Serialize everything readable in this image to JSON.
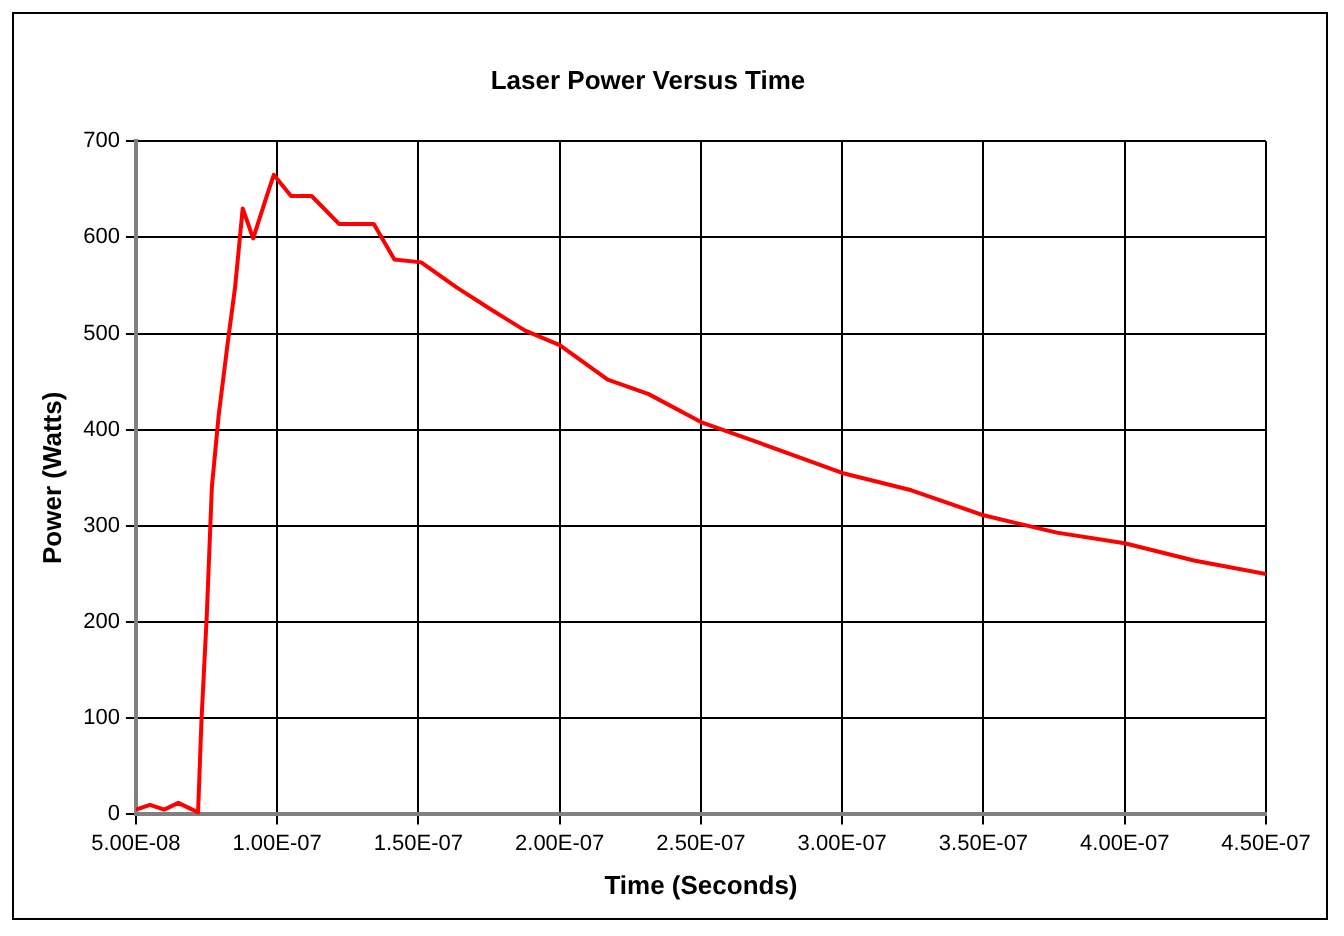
{
  "chart_data": {
    "type": "line",
    "title": "Laser Power Versus Time",
    "xlabel": "Time (Seconds)",
    "ylabel": "Power (Watts)",
    "series": [
      {
        "color": "#ff0000",
        "x": [
          5e-08,
          5.5e-08,
          6e-08,
          6.5e-08,
          7e-08,
          7.2e-08,
          7.32e-08,
          7.51e-08,
          7.69e-08,
          7.93e-08,
          8.24e-08,
          8.51e-08,
          8.78e-08,
          9.15e-08,
          9.63e-08,
          9.88e-08,
          1.049e-07,
          1.122e-07,
          1.219e-07,
          1.342e-07,
          1.415e-07,
          1.51e-07,
          1.635e-07,
          1.757e-07,
          1.878e-07,
          2e-07,
          2.17e-07,
          2.315e-07,
          2.5e-07,
          2.71e-07,
          3e-07,
          3.245e-07,
          3.5e-07,
          3.76e-07,
          4e-07,
          4.245e-07,
          4.5e-07
        ],
        "values": [
          5,
          10,
          5,
          12,
          5,
          2,
          97,
          208,
          341,
          415,
          488,
          548,
          630,
          599,
          643,
          665,
          643,
          643,
          614,
          614,
          577,
          574,
          548,
          525,
          503,
          488,
          452,
          437,
          408,
          386,
          355,
          337,
          311,
          293,
          282,
          264,
          250
        ]
      }
    ],
    "xlim": [
      5e-08,
      4.5e-07
    ],
    "xticks": [
      {
        "value": 5e-08,
        "label": "5.00E-08"
      },
      {
        "value": 1e-07,
        "label": "1.00E-07"
      },
      {
        "value": 1.5e-07,
        "label": "1.50E-07"
      },
      {
        "value": 2e-07,
        "label": "2.00E-07"
      },
      {
        "value": 2.5e-07,
        "label": "2.50E-07"
      },
      {
        "value": 3e-07,
        "label": "3.00E-07"
      },
      {
        "value": 3.5e-07,
        "label": "3.50E-07"
      },
      {
        "value": 4e-07,
        "label": "4.00E-07"
      },
      {
        "value": 4.5e-07,
        "label": "4.50E-07"
      }
    ],
    "ylim": [
      0,
      700
    ],
    "yticks": [
      0,
      100,
      200,
      300,
      400,
      500,
      600,
      700
    ],
    "grid": true,
    "legend": false,
    "marker": "none",
    "line_style": "solid"
  }
}
